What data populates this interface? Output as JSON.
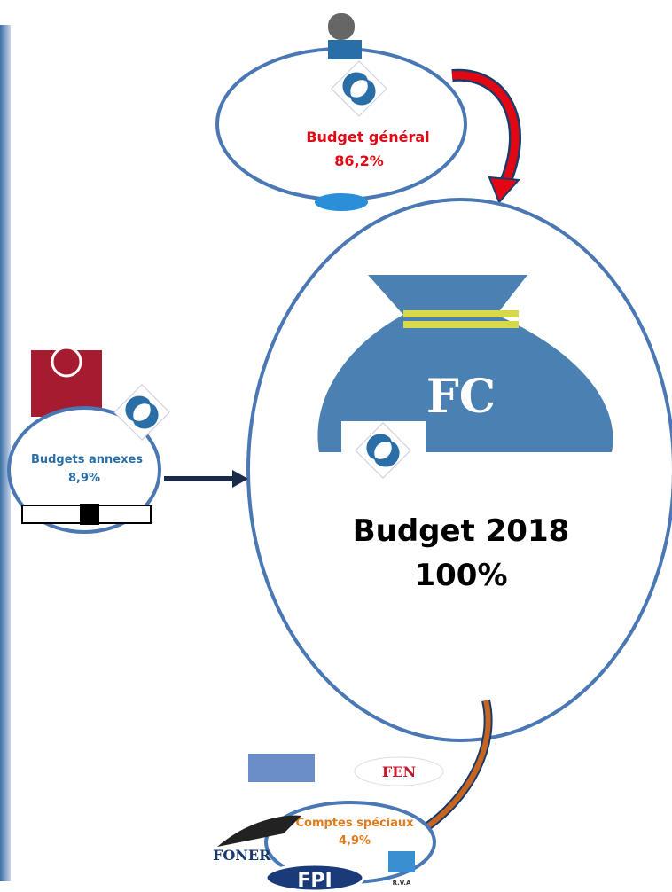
{
  "general": {
    "label": "Budget général",
    "share": "86,2%"
  },
  "annexes": {
    "label": "Budgets annexes",
    "share": "8,9%"
  },
  "total": {
    "label": "Budget 2018",
    "share": "100%",
    "bag_text": "FC"
  },
  "speciaux": {
    "label": "Comptes spéciaux",
    "share": "4,9%"
  },
  "logos": {
    "foner": "FONER",
    "fpi": "FPI",
    "rva": "R.V.A",
    "fen": "FEN"
  }
}
